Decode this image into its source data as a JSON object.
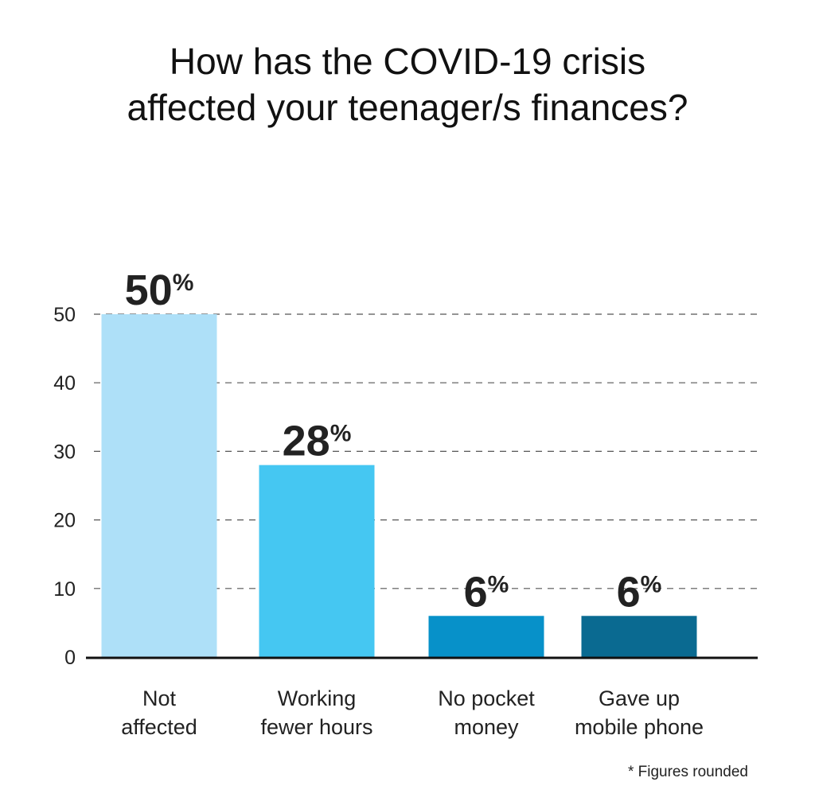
{
  "title_lines": [
    "How has the COVID-19 crisis",
    "affected your teenager/s finances?"
  ],
  "footnote": "* Figures rounded",
  "chart_data": {
    "type": "bar",
    "title": "How has the COVID-19 crisis affected your teenager/s finances?",
    "categories": [
      [
        "Not",
        "affected"
      ],
      [
        "Working",
        "fewer hours"
      ],
      [
        "No pocket",
        "money"
      ],
      [
        "Gave up",
        "mobile phone"
      ]
    ],
    "values": [
      50,
      28,
      6,
      6
    ],
    "value_labels": [
      "50",
      "28",
      "6",
      "6"
    ],
    "value_suffix": "%",
    "colors": [
      "#aee0f8",
      "#45c7f2",
      "#0791c9",
      "#0a6a91"
    ],
    "ylim": [
      0,
      50
    ],
    "yticks": [
      0,
      10,
      20,
      30,
      40,
      50
    ],
    "grid": true,
    "grid_style": "dashed",
    "legend": "none"
  }
}
